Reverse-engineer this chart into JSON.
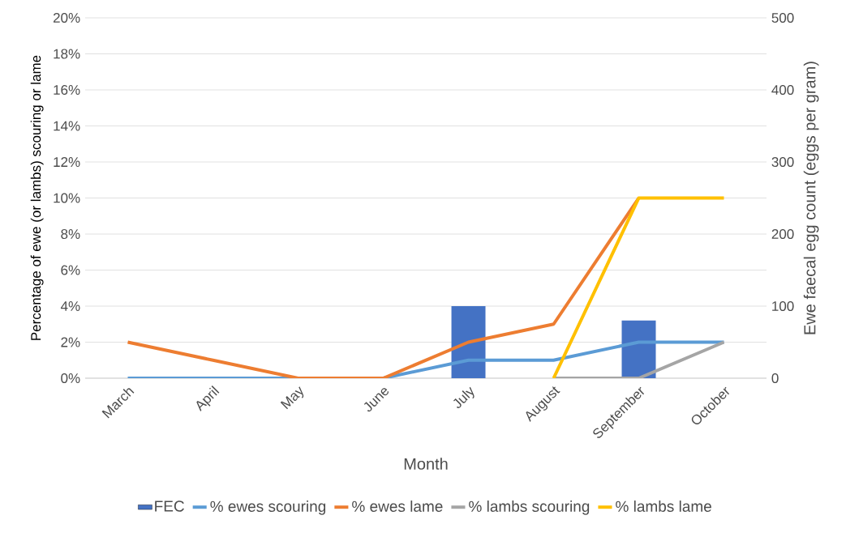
{
  "chart_data": {
    "type": "line",
    "xlabel": "Month",
    "ylabel": "Percentage of ewe (or lambs) scouring or lame",
    "y2label": "Ewe faecal egg count (eggs per gram)",
    "categories": [
      "March",
      "April",
      "May",
      "June",
      "July",
      "August",
      "September",
      "October"
    ],
    "series": [
      {
        "name": "FEC",
        "type": "bar",
        "axis": "y2",
        "color": "#4472c4",
        "values": [
          null,
          null,
          null,
          null,
          100,
          null,
          80,
          null
        ]
      },
      {
        "name": "% ewes scouring",
        "color": "#5b9bd5",
        "values": [
          0,
          0,
          0,
          0,
          1,
          1,
          2,
          2
        ]
      },
      {
        "name": "% ewes lame",
        "color": "#ed7d31",
        "values": [
          2,
          1,
          0,
          0,
          2,
          3,
          10,
          null
        ]
      },
      {
        "name": "% lambs scouring",
        "color": "#a5a5a5",
        "values": [
          null,
          null,
          null,
          null,
          null,
          0,
          0,
          2
        ]
      },
      {
        "name": "% lambs lame",
        "color": "#ffc000",
        "values": [
          null,
          null,
          null,
          null,
          null,
          0,
          10,
          10
        ]
      }
    ],
    "ylim": [
      0,
      20
    ],
    "yticks": [
      {
        "value": 0,
        "label": "0%"
      },
      {
        "value": 2,
        "label": "2%"
      },
      {
        "value": 4,
        "label": "4%"
      },
      {
        "value": 6,
        "label": "6%"
      },
      {
        "value": 8,
        "label": "8%"
      },
      {
        "value": 10,
        "label": "10%"
      },
      {
        "value": 12,
        "label": "12%"
      },
      {
        "value": 14,
        "label": "14%"
      },
      {
        "value": 16,
        "label": "16%"
      },
      {
        "value": 18,
        "label": "18%"
      },
      {
        "value": 20,
        "label": "20%"
      }
    ],
    "y2lim": [
      0,
      500
    ],
    "y2ticks": [
      0,
      100,
      200,
      300,
      400,
      500
    ],
    "grid": "y",
    "legend": "bottom",
    "marker": "none",
    "line_style": "solid"
  }
}
